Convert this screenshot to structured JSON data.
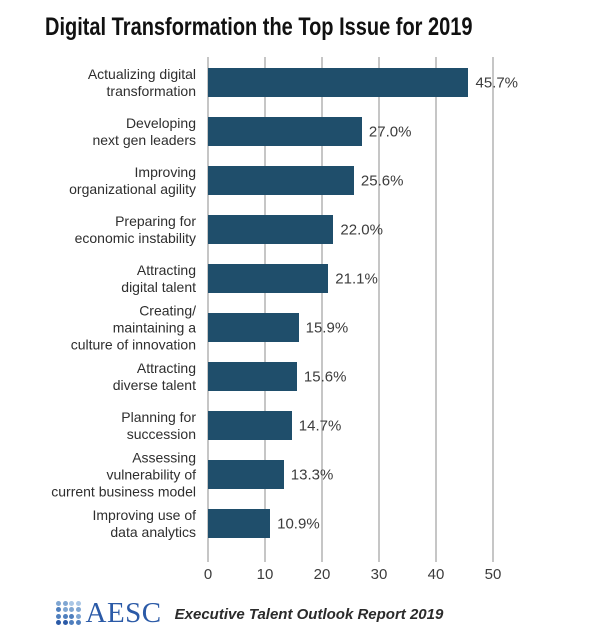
{
  "title": "Digital Transformation the Top Issue for 2019",
  "chart_data": {
    "type": "bar",
    "orientation": "horizontal",
    "title": "Digital Transformation the Top Issue for 2019",
    "categories": [
      "Actualizing digital\ntransformation",
      "Developing\nnext gen leaders",
      "Improving\norganizational agility",
      "Preparing for\neconomic instability",
      "Attracting\ndigital talent",
      "Creating/\nmaintaining a\nculture of innovation",
      "Attracting\ndiverse talent",
      "Planning for\nsuccession",
      "Assessing\nvulnerability of\ncurrent business model",
      "Improving use of\ndata analytics"
    ],
    "values": [
      45.7,
      27.0,
      25.6,
      22.0,
      21.1,
      15.9,
      15.6,
      14.7,
      13.3,
      10.9
    ],
    "value_labels": [
      "45.7%",
      "27.0%",
      "25.6%",
      "22.0%",
      "21.1%",
      "15.9%",
      "15.6%",
      "14.7%",
      "13.3%",
      "10.9%"
    ],
    "x_ticks": [
      "0",
      "10",
      "20",
      "30",
      "40",
      "50"
    ],
    "x_tick_values": [
      0,
      10,
      20,
      30,
      40,
      50
    ],
    "xlim": [
      0,
      50
    ],
    "grid": true,
    "legend": "none",
    "bar_color": "#1F4E6B",
    "gridline_color": "#c6c6c6"
  },
  "footer": {
    "logo_text": "AESC",
    "caption": "Executive Talent Outlook Report 2019",
    "logo_blue": "#2B5AA7",
    "logo_dot_palette": [
      "#A9C6E5",
      "#7FA6D2",
      "#4F7FBE",
      "#2B5AA7"
    ]
  }
}
